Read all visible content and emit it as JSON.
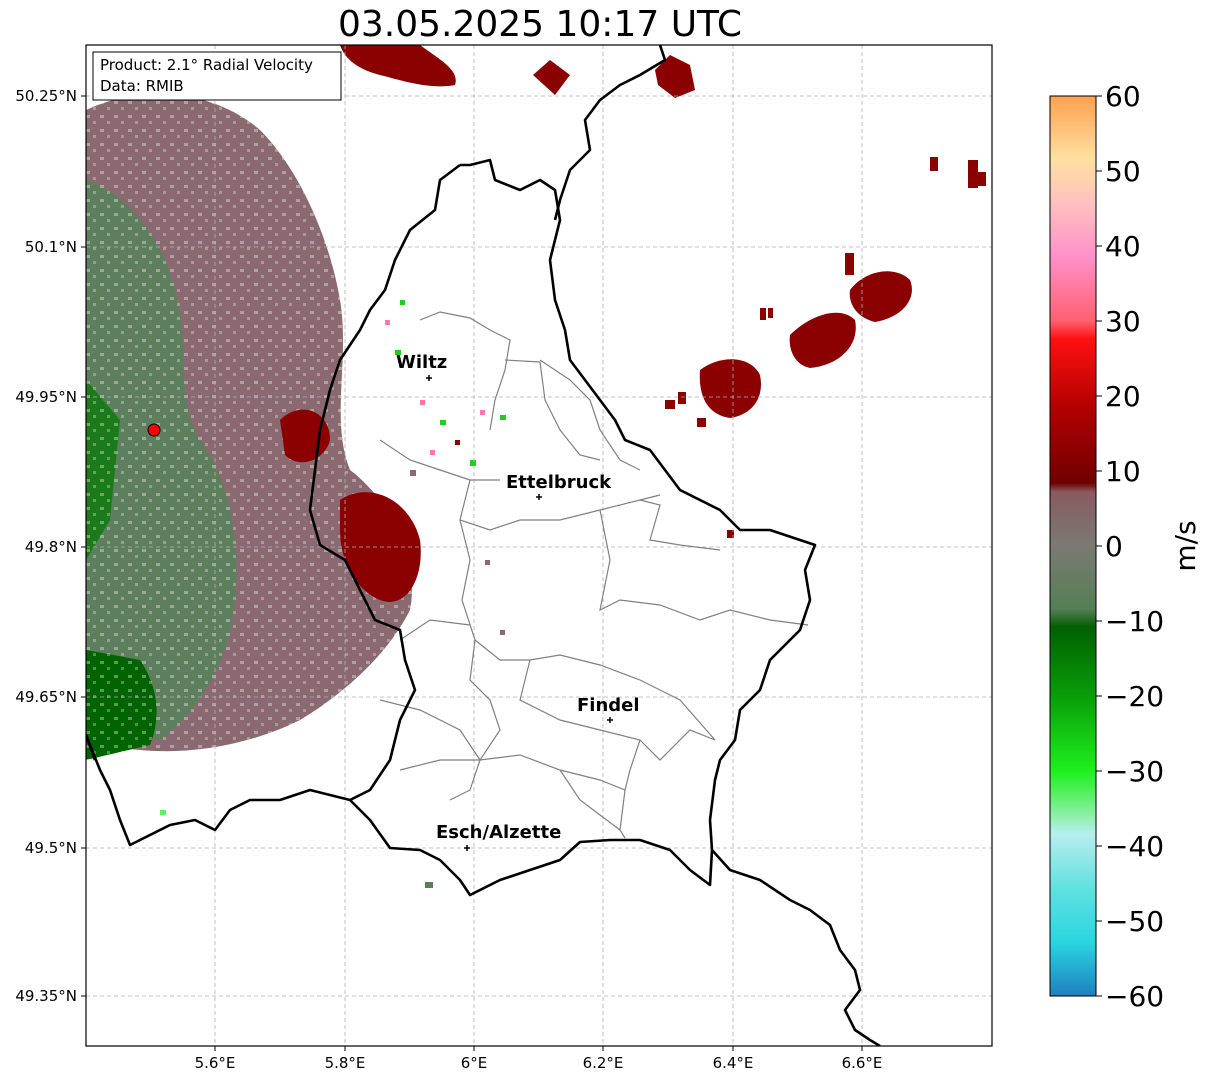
{
  "title": "03.05.2025 10:17 UTC",
  "info": {
    "product": "Product: 2.1° Radial Velocity",
    "data": "Data: RMIB"
  },
  "axes": {
    "x_ticks": [
      "5.6°E",
      "5.8°E",
      "6°E",
      "6.2°E",
      "6.4°E",
      "6.6°E"
    ],
    "y_ticks": [
      "50.25°N",
      "50.1°N",
      "49.95°N",
      "49.8°N",
      "49.65°N",
      "49.5°N",
      "49.35°N"
    ]
  },
  "places": [
    {
      "name": "Wiltz"
    },
    {
      "name": "Ettelbruck"
    },
    {
      "name": "Findel"
    },
    {
      "name": "Esch/Alzette"
    }
  ],
  "colorbar": {
    "label": "m/s",
    "ticks": [
      "60",
      "50",
      "40",
      "30",
      "20",
      "10",
      "0",
      "−10",
      "−20",
      "−30",
      "−40",
      "−50",
      "−60"
    ],
    "range": [
      -60,
      60
    ]
  },
  "colors": {
    "inbound_strong": "#1f7fc0",
    "inbound_green": "#006400",
    "near_zero_green": "#5e7f5e",
    "near_zero_mauve": "#8a6a70",
    "outbound_dark": "#8b0000",
    "outbound_red": "#ff0000",
    "outbound_pink": "#ff88cc",
    "outbound_orange": "#ffa050",
    "radar_site": "#ff0000"
  }
}
